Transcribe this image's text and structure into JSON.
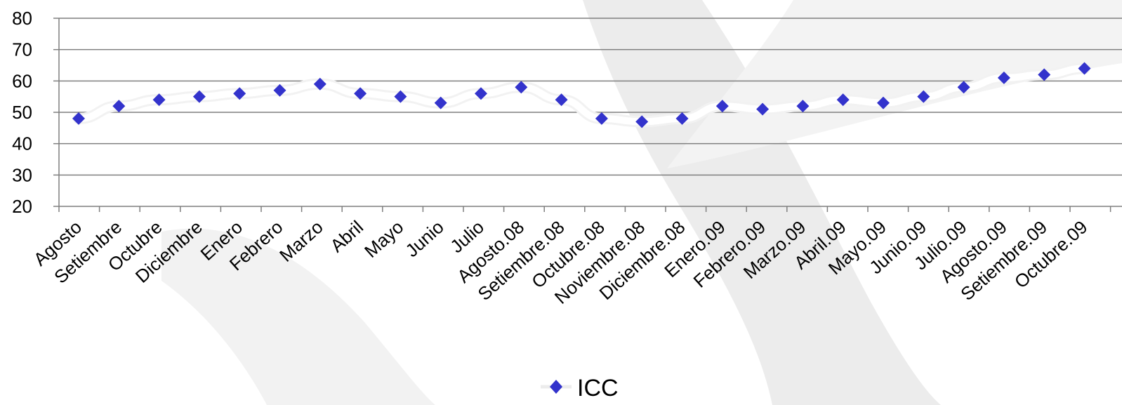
{
  "chart_data": {
    "type": "line",
    "categories": [
      "Agosto",
      "Setiembre",
      "Octubre",
      "Diciembre",
      "Enero",
      "Febrero",
      "Marzo",
      "Abril",
      "Mayo",
      "Junio",
      "Julio",
      "Agosto.08",
      "Setiembre.08",
      "Octubre.08",
      "Noviembre.08",
      "Diciembre.08",
      "Enero.09",
      "Febrero.09",
      "Marzo.09",
      "Abril.09",
      "Mayo.09",
      "Junio.09",
      "Julio.09",
      "Agosto.09",
      "Setiembre.09",
      "Octubre.09"
    ],
    "series": [
      {
        "name": "ICC",
        "values": [
          48,
          52,
          54,
          55,
          56,
          57,
          59,
          56,
          55,
          53,
          56,
          58,
          54,
          48,
          47,
          48,
          52,
          51,
          52,
          54,
          53,
          55,
          58,
          61,
          62,
          64
        ]
      }
    ],
    "ylim": [
      20,
      80
    ],
    "yticks": [
      20,
      30,
      40,
      50,
      60,
      70,
      80
    ],
    "grid": true,
    "legend_position": "bottom",
    "colors": {
      "marker": "#3333cc",
      "line": "#f2f2f2",
      "grid": "#7f7f7f",
      "watermark": "#ececec"
    }
  }
}
